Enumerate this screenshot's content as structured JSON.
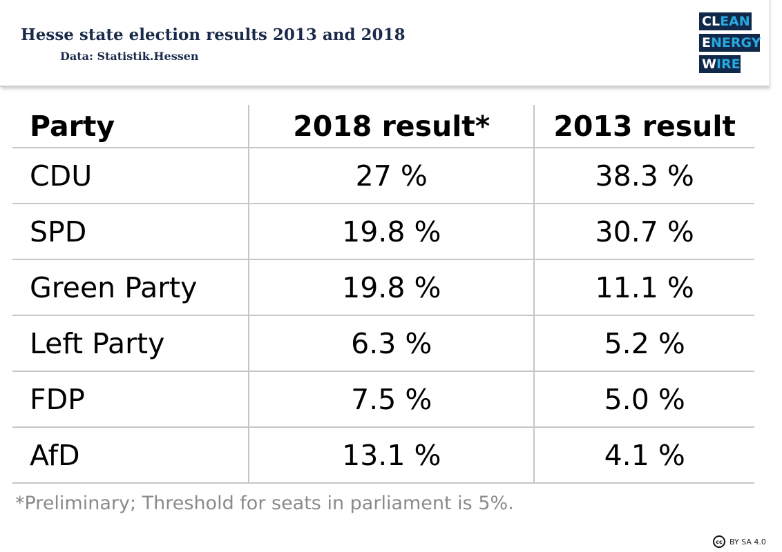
{
  "header": {
    "title": "Hesse state election results 2013 and 2018",
    "subtitle": "Data: Statistik.Hessen"
  },
  "logo": {
    "lines": [
      {
        "bright": "CL",
        "dim": "EAN"
      },
      {
        "bright": "E",
        "dim": "NERGY"
      },
      {
        "bright": "W",
        "dim": "IRE"
      }
    ],
    "colors": {
      "background": "#10294a",
      "bright": "#ffffff",
      "dim": "#29a9e0"
    }
  },
  "chart_data": {
    "type": "table",
    "columns": [
      "Party",
      "2018 result*",
      "2013 result"
    ],
    "rows": [
      {
        "party": "CDU",
        "r2018": "27 %",
        "r2013": "38.3 %"
      },
      {
        "party": "SPD",
        "r2018": "19.8 %",
        "r2013": "30.7 %"
      },
      {
        "party": "Green Party",
        "r2018": "19.8 %",
        "r2013": "11.1 %"
      },
      {
        "party": "Left Party",
        "r2018": "6.3 %",
        "r2013": "5.2 %"
      },
      {
        "party": "FDP",
        "r2018": "7.5 %",
        "r2013": "5.0 %"
      },
      {
        "party": "AfD",
        "r2018": "13.1 %",
        "r2013": "4.1 %"
      }
    ]
  },
  "footnote": "*Preliminary; Threshold for seats in parliament is 5%.",
  "license": {
    "icon": "cc-icon",
    "icon_text": "cc",
    "text": "BY SA 4.0"
  }
}
